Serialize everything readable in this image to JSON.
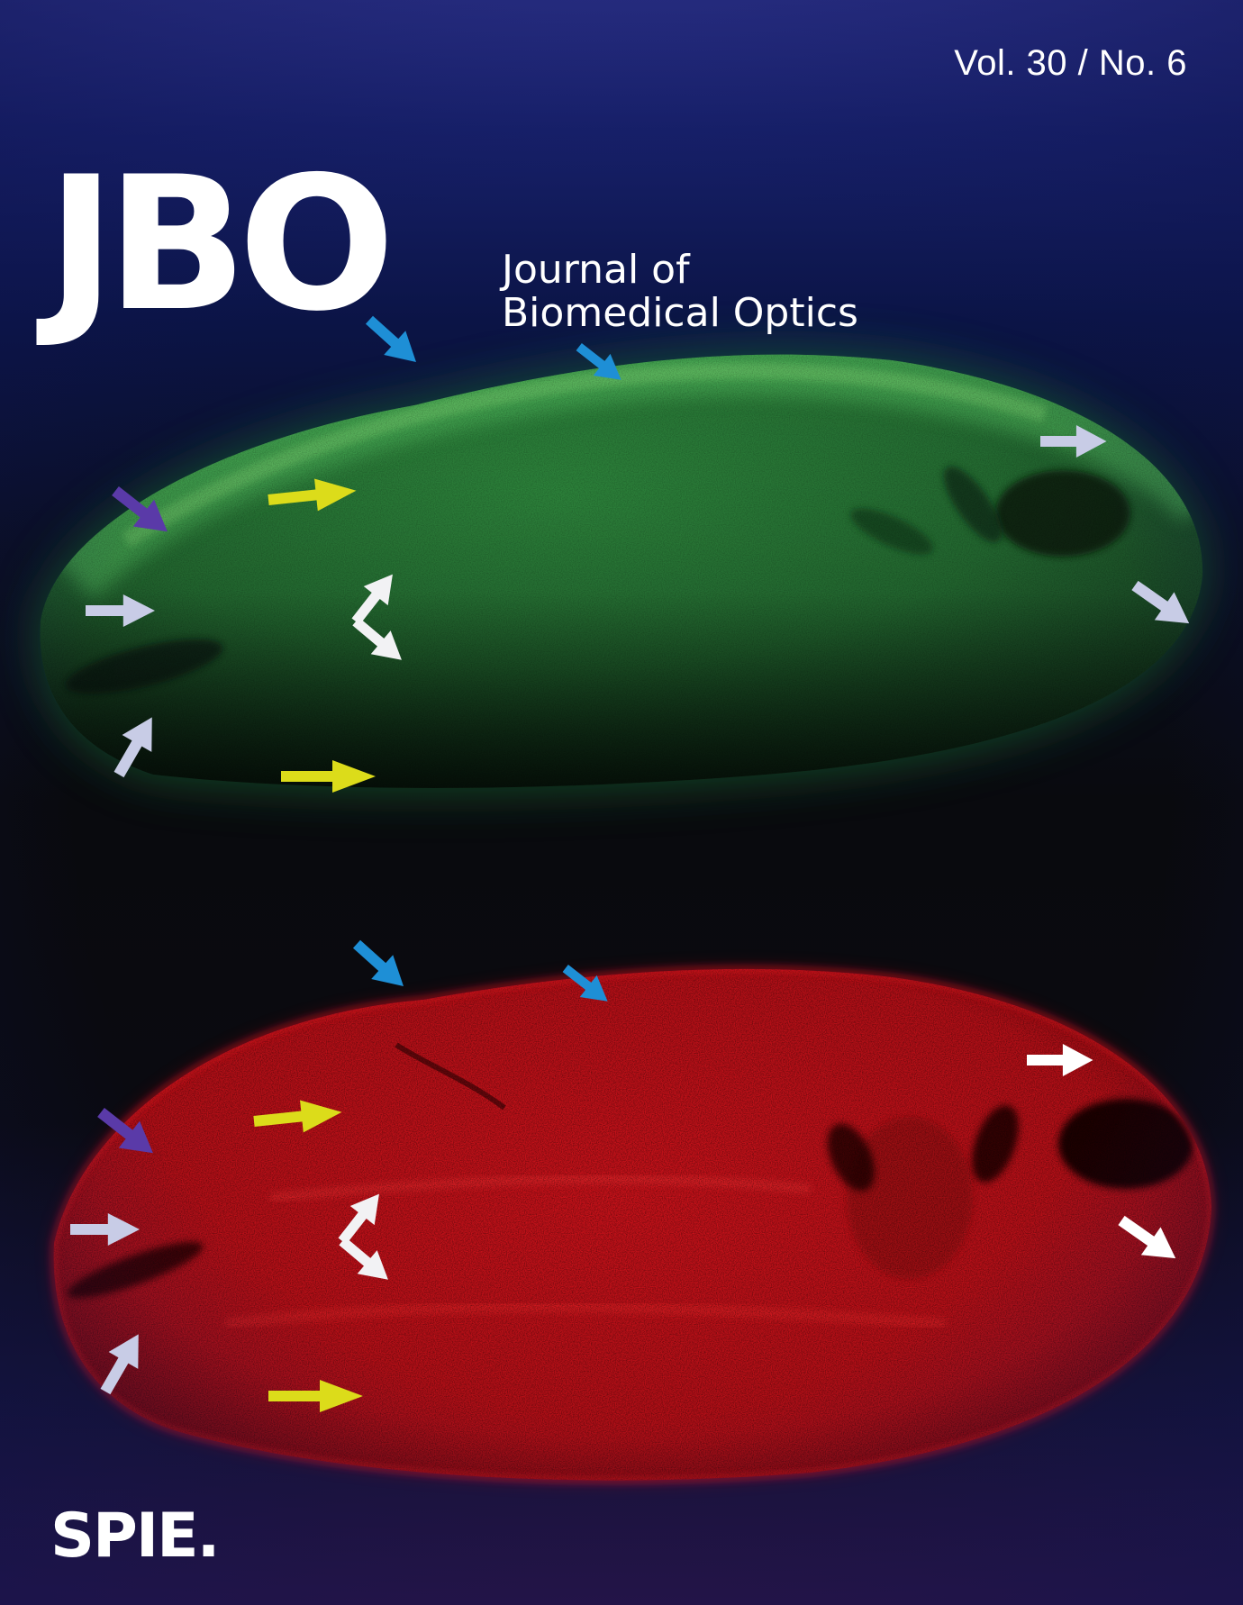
{
  "cover": {
    "volume": "Vol. 30 / No. 6",
    "logo": "JBO",
    "title_line1": "Journal of",
    "title_line2": "Biomedical Optics",
    "publisher": "SPIE."
  },
  "colors": {
    "background_top": "#2a3088",
    "background_mid": "#090a0e",
    "green_specimen": "#2fa04a",
    "red_specimen": "#e0161e",
    "arrow_blue": "#1e8fd6",
    "arrow_purple": "#5a3aa8",
    "arrow_yellow": "#dcdc1a",
    "arrow_white": "#ffffff",
    "arrow_lavender": "#c8cce6"
  },
  "image": {
    "top_panel": "green-fluorescence-embryo-section",
    "bottom_panel": "red-fluorescence-embryo-section"
  }
}
